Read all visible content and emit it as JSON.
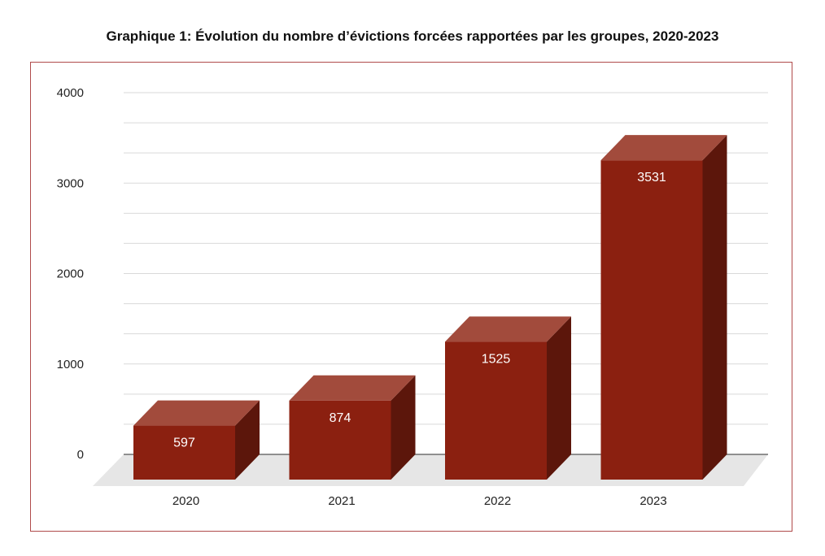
{
  "chart_data": {
    "type": "bar",
    "title": "Graphique 1: Évolution du nombre d’évictions forcées rapportées par les groupes, 2020-2023",
    "categories": [
      "2020",
      "2021",
      "2022",
      "2023"
    ],
    "values": [
      597,
      874,
      1525,
      3531
    ],
    "data_labels": [
      "597",
      "874",
      "1525",
      "3531"
    ],
    "ylim": [
      0,
      4000
    ],
    "yticks": [
      0,
      1000,
      2000,
      3000,
      4000
    ],
    "ytick_labels": [
      "0",
      "1000",
      "2000",
      "3000",
      "4000"
    ],
    "minor_grid_step": 333.33,
    "grid": true,
    "style": "3d",
    "colors": {
      "bar_front": "#8b2010",
      "bar_top": "#a24b3c",
      "bar_side": "#5c160b",
      "floor": "#e6e6e6",
      "frame": "#b04a4a",
      "grid": "#d9d9d9",
      "axis": "#555555"
    }
  }
}
